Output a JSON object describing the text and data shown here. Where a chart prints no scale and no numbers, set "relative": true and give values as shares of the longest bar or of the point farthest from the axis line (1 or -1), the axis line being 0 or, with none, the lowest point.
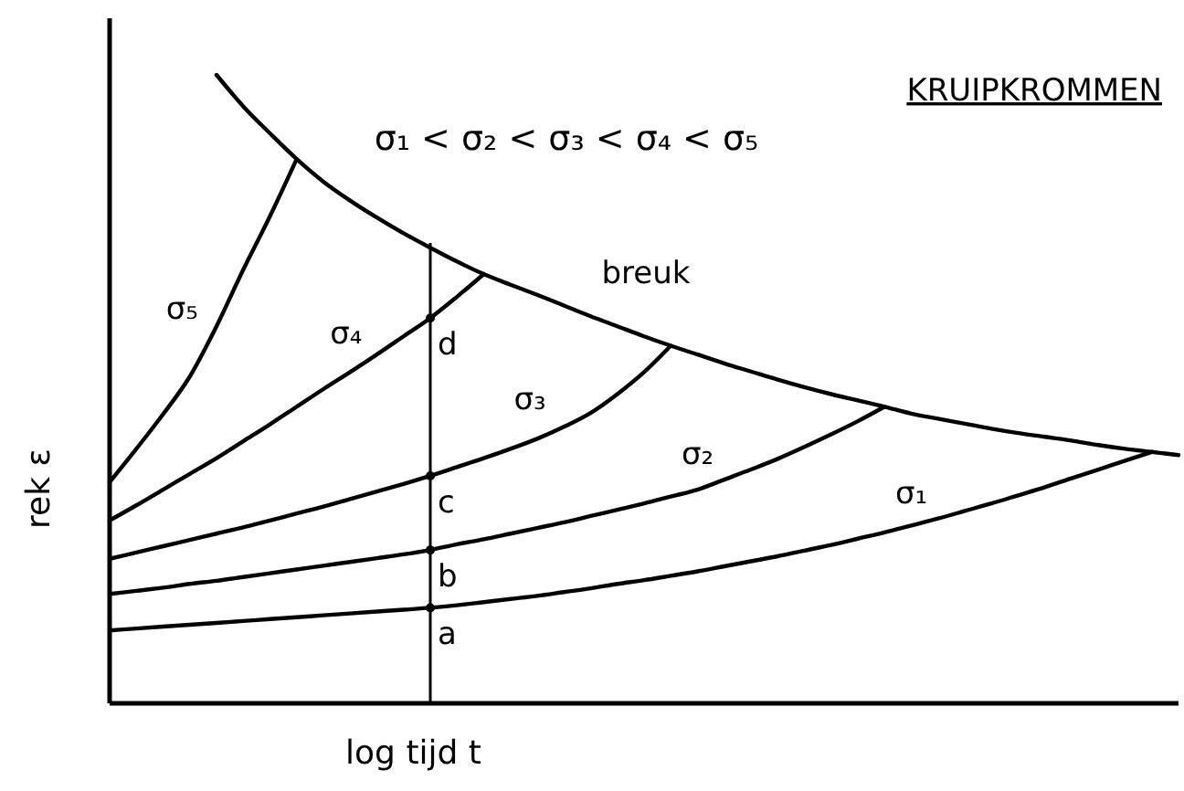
{
  "chart_data": {
    "type": "line",
    "title": "KRUIPKROMMEN",
    "xlabel": "log tijd t",
    "ylabel": "rek ε",
    "relative": true,
    "tick_labels": false,
    "line_style": "solid",
    "categories": [
      null,
      null,
      null,
      null,
      null,
      null,
      null,
      null,
      null,
      null,
      null,
      null,
      null,
      null,
      null,
      null,
      null,
      null,
      null,
      null,
      null,
      null,
      null,
      null,
      null,
      null,
      null,
      null,
      null,
      null,
      null,
      null,
      null,
      null,
      null,
      null,
      null,
      null,
      null,
      null,
      null
    ],
    "series": [
      {
        "name": "σ₁",
        "color": "#000000",
        "values": [
          0.116,
          0.119,
          0.122,
          0.125,
          0.128,
          0.131,
          0.134,
          0.137,
          0.14,
          0.143,
          0.146,
          0.149,
          0.152,
          0.156,
          0.161,
          0.166,
          0.171,
          0.177,
          0.183,
          0.19,
          0.196,
          0.203,
          0.21,
          0.218,
          0.226,
          0.234,
          0.243,
          0.252,
          0.262,
          0.272,
          0.283,
          0.294,
          0.306,
          0.318,
          0.331,
          0.344,
          0.358,
          0.372,
          0.386,
          0.4,
          null
        ]
      },
      {
        "name": "σ₂",
        "color": "#000000",
        "values": [
          0.174,
          0.179,
          0.184,
          0.19,
          0.195,
          0.201,
          0.207,
          0.213,
          0.219,
          0.225,
          0.231,
          0.237,
          0.244,
          0.253,
          0.261,
          0.27,
          0.279,
          0.288,
          0.298,
          0.308,
          0.318,
          0.329,
          0.34,
          0.356,
          0.372,
          0.389,
          0.408,
          0.428,
          0.449,
          0.472,
          null,
          null,
          null,
          null,
          null,
          null,
          null,
          null,
          null,
          null,
          null
        ]
      },
      {
        "name": "σ₃",
        "color": "#000000",
        "values": [
          0.23,
          0.24,
          0.25,
          0.26,
          0.27,
          0.28,
          0.291,
          0.302,
          0.313,
          0.325,
          0.337,
          0.349,
          0.362,
          0.376,
          0.39,
          0.405,
          0.421,
          0.44,
          0.462,
          0.492,
          0.527,
          0.569,
          null,
          null,
          null,
          null,
          null,
          null,
          null,
          null,
          null,
          null,
          null,
          null,
          null,
          null,
          null,
          null,
          null,
          null,
          null
        ]
      },
      {
        "name": "σ₄",
        "color": "#000000",
        "values": [
          0.291,
          0.315,
          0.34,
          0.365,
          0.39,
          0.417,
          0.444,
          0.472,
          0.5,
          0.527,
          0.555,
          0.584,
          0.613,
          0.647,
          0.683,
          null,
          null,
          null,
          null,
          null,
          null,
          null,
          null,
          null,
          null,
          null,
          null,
          null,
          null,
          null,
          null,
          null,
          null,
          null,
          null,
          null,
          null,
          null,
          null,
          null,
          null
        ]
      },
      {
        "name": "σ₅",
        "color": "#000000",
        "values": [
          0.352,
          0.405,
          0.46,
          0.52,
          0.6,
          0.69,
          0.775,
          0.866,
          null,
          null,
          null,
          null,
          null,
          null,
          null,
          null,
          null,
          null,
          null,
          null,
          null,
          null,
          null,
          null,
          null,
          null,
          null,
          null,
          null,
          null,
          null,
          null,
          null,
          null,
          null,
          null,
          null,
          null,
          null,
          null,
          null
        ]
      },
      {
        "name": "breuk",
        "color": "#000000",
        "values": [
          null,
          null,
          null,
          null,
          1,
          0.95,
          0.907,
          0.866,
          0.83,
          0.8,
          0.773,
          0.748,
          0.725,
          0.703,
          0.683,
          0.666,
          0.65,
          0.633,
          0.616,
          0.6,
          0.584,
          0.569,
          0.555,
          0.541,
          0.528,
          0.515,
          0.503,
          0.492,
          0.482,
          0.472,
          0.461,
          0.453,
          0.445,
          0.437,
          0.43,
          0.424,
          0.418,
          0.411,
          0.405,
          0.4,
          0.395
        ]
      }
    ],
    "annotations": [
      "σ₁ < σ₂ < σ₃ < σ₄ < σ₅",
      {
        "text": "a",
        "y": 0.152
      },
      {
        "text": "b",
        "y": 0.244
      },
      {
        "text": "c",
        "y": 0.362
      },
      {
        "text": "d",
        "y": 0.613
      }
    ]
  }
}
